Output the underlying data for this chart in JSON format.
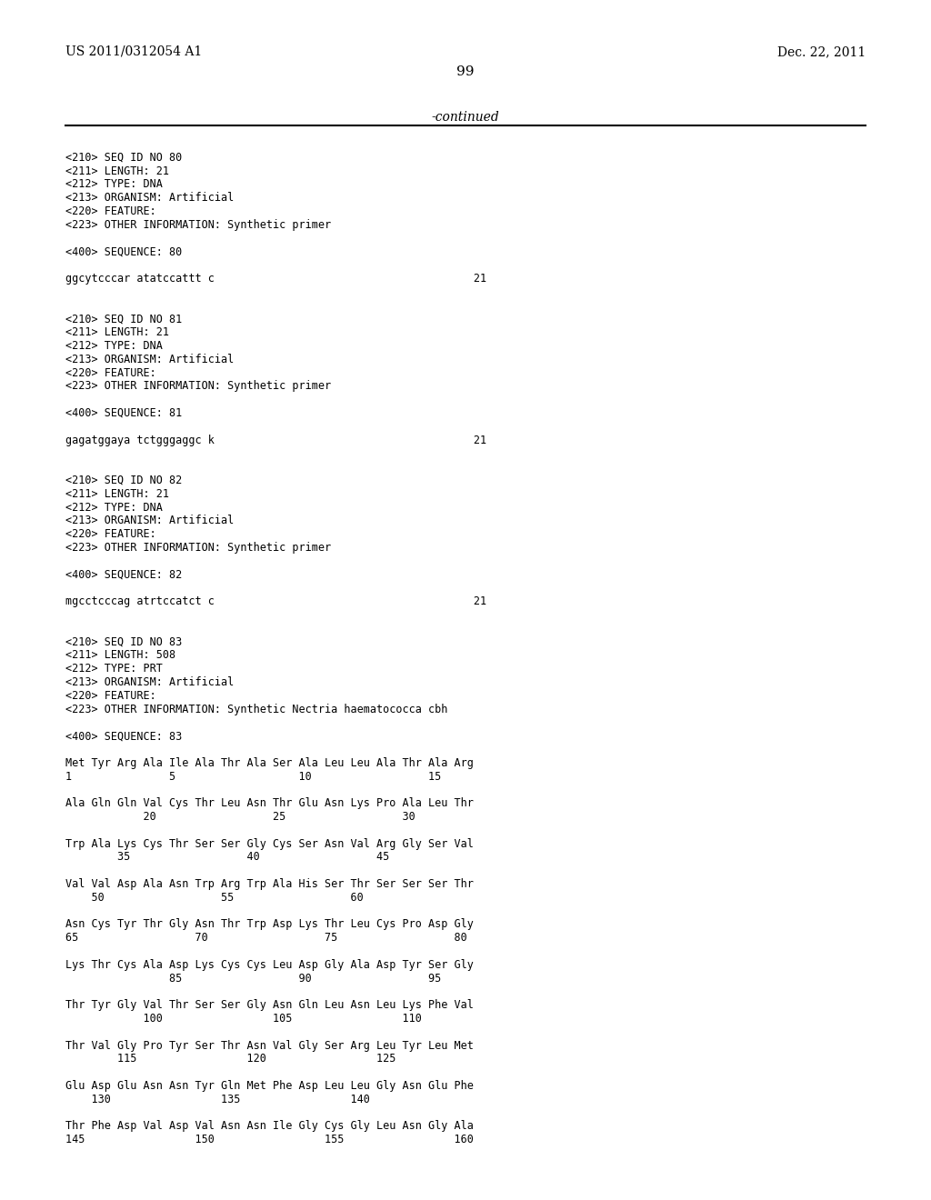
{
  "bg_color": "#ffffff",
  "header_left": "US 2011/0312054 A1",
  "header_right": "Dec. 22, 2011",
  "page_number": "99",
  "continued_text": "-continued",
  "monospace_lines": [
    "",
    "<210> SEQ ID NO 80",
    "<211> LENGTH: 21",
    "<212> TYPE: DNA",
    "<213> ORGANISM: Artificial",
    "<220> FEATURE:",
    "<223> OTHER INFORMATION: Synthetic primer",
    "",
    "<400> SEQUENCE: 80",
    "",
    "ggcytcccar atatccattt c                                        21",
    "",
    "",
    "<210> SEQ ID NO 81",
    "<211> LENGTH: 21",
    "<212> TYPE: DNA",
    "<213> ORGANISM: Artificial",
    "<220> FEATURE:",
    "<223> OTHER INFORMATION: Synthetic primer",
    "",
    "<400> SEQUENCE: 81",
    "",
    "gagatggaya tctgggaggc k                                        21",
    "",
    "",
    "<210> SEQ ID NO 82",
    "<211> LENGTH: 21",
    "<212> TYPE: DNA",
    "<213> ORGANISM: Artificial",
    "<220> FEATURE:",
    "<223> OTHER INFORMATION: Synthetic primer",
    "",
    "<400> SEQUENCE: 82",
    "",
    "mgcctcccag atrtccatct c                                        21",
    "",
    "",
    "<210> SEQ ID NO 83",
    "<211> LENGTH: 508",
    "<212> TYPE: PRT",
    "<213> ORGANISM: Artificial",
    "<220> FEATURE:",
    "<223> OTHER INFORMATION: Synthetic Nectria haematococca cbh",
    "",
    "<400> SEQUENCE: 83",
    "",
    "Met Tyr Arg Ala Ile Ala Thr Ala Ser Ala Leu Leu Ala Thr Ala Arg",
    "1               5                   10                  15",
    "",
    "Ala Gln Gln Val Cys Thr Leu Asn Thr Glu Asn Lys Pro Ala Leu Thr",
    "            20                  25                  30",
    "",
    "Trp Ala Lys Cys Thr Ser Ser Gly Cys Ser Asn Val Arg Gly Ser Val",
    "        35                  40                  45",
    "",
    "Val Val Asp Ala Asn Trp Arg Trp Ala His Ser Thr Ser Ser Ser Thr",
    "    50                  55                  60",
    "",
    "Asn Cys Tyr Thr Gly Asn Thr Trp Asp Lys Thr Leu Cys Pro Asp Gly",
    "65                  70                  75                  80",
    "",
    "Lys Thr Cys Ala Asp Lys Cys Cys Leu Asp Gly Ala Asp Tyr Ser Gly",
    "                85                  90                  95",
    "",
    "Thr Tyr Gly Val Thr Ser Ser Gly Asn Gln Leu Asn Leu Lys Phe Val",
    "            100                 105                 110",
    "",
    "Thr Val Gly Pro Tyr Ser Thr Asn Val Gly Ser Arg Leu Tyr Leu Met",
    "        115                 120                 125",
    "",
    "Glu Asp Glu Asn Asn Tyr Gln Met Phe Asp Leu Leu Gly Asn Glu Phe",
    "    130                 135                 140",
    "",
    "Thr Phe Asp Val Asp Val Asn Asn Ile Gly Cys Gly Leu Asn Gly Ala",
    "145                 150                 155                 160"
  ]
}
